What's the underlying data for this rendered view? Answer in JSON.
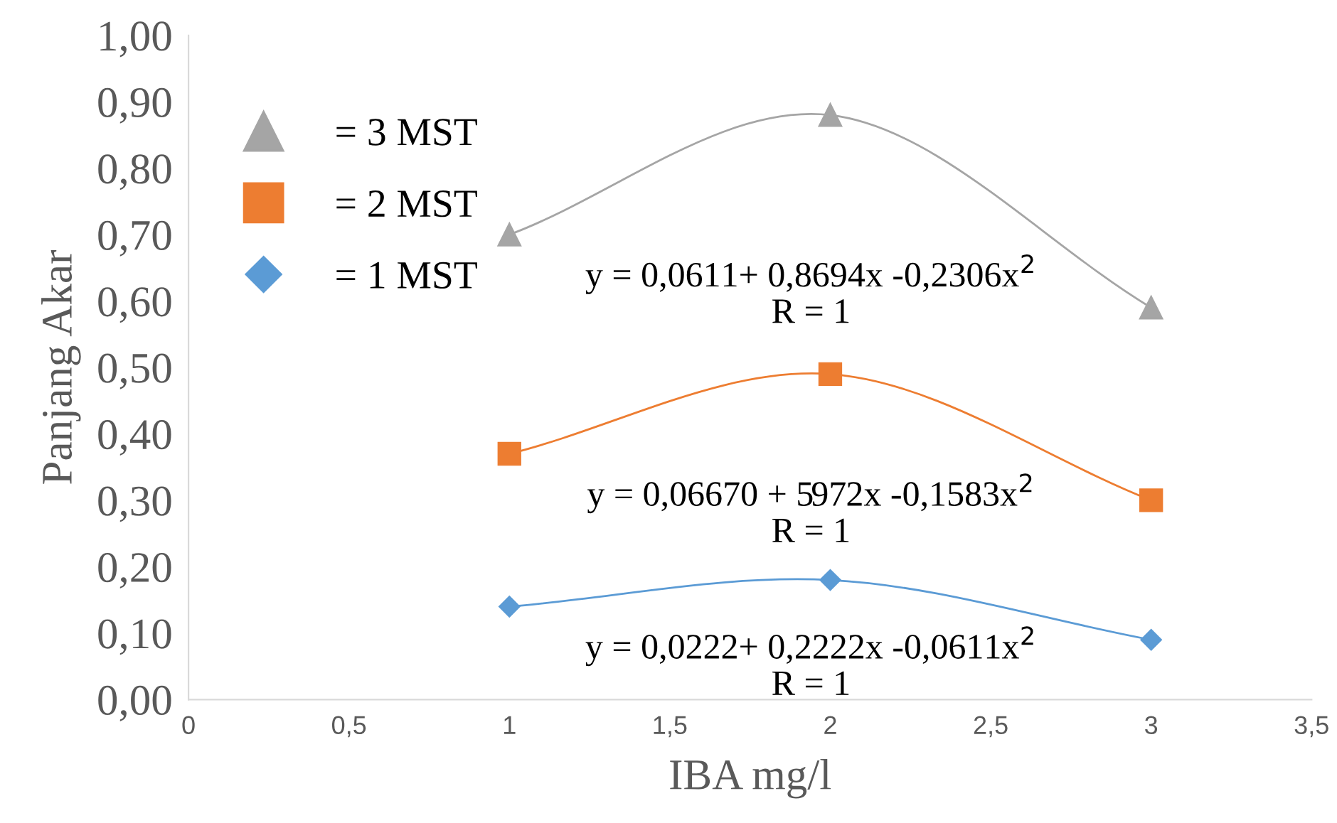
{
  "chart_data": {
    "type": "line",
    "xlabel": "IBA mg/l",
    "ylabel": "Panjang Akar",
    "x": [
      1,
      2,
      3
    ],
    "series": [
      {
        "name": "= 3 MST",
        "color": "#a5a5a5",
        "marker": "triangle",
        "values": [
          0.7,
          0.88,
          0.59
        ]
      },
      {
        "name": "= 2 MST",
        "color": "#ed7d31",
        "marker": "square",
        "values": [
          0.37,
          0.49,
          0.3
        ]
      },
      {
        "name": "= 1 MST",
        "color": "#5b9bd5",
        "marker": "diamond",
        "values": [
          0.14,
          0.18,
          0.09
        ]
      }
    ],
    "xlim": [
      0,
      3.5
    ],
    "xticks": [
      0,
      {
        "value": 0.5,
        "label": "0,5"
      },
      1,
      {
        "value": 1.5,
        "label": "1,5"
      },
      2,
      {
        "value": 2.5,
        "label": "2,5"
      },
      3,
      {
        "value": 3.5,
        "label": "3,5"
      }
    ],
    "ylim": [
      0,
      1
    ],
    "yticks": [
      {
        "value": 0,
        "label": "0,00"
      },
      {
        "value": 0.1,
        "label": "0,10"
      },
      {
        "value": 0.2,
        "label": "0,20"
      },
      {
        "value": 0.3,
        "label": "0,30"
      },
      {
        "value": 0.4,
        "label": "0,40"
      },
      {
        "value": 0.5,
        "label": "0,50"
      },
      {
        "value": 0.6,
        "label": "0,60"
      },
      {
        "value": 0.7,
        "label": "0,70"
      },
      {
        "value": 0.8,
        "label": "0,80"
      },
      {
        "value": 0.9,
        "label": "0,90"
      },
      {
        "value": 1,
        "label": "1,00"
      }
    ],
    "grid": false,
    "legend": "top left",
    "annotations": [
      "y = 0,0611+ 0,8694x -0,2306x$^{2}$",
      "R = 1",
      "y = 0,06670 + 5972x -0,1583x$^{2}$",
      "R = 1",
      "y = 0,0222+ 0,2222x -0,0611x$^{2}$",
      "R = 1"
    ]
  }
}
